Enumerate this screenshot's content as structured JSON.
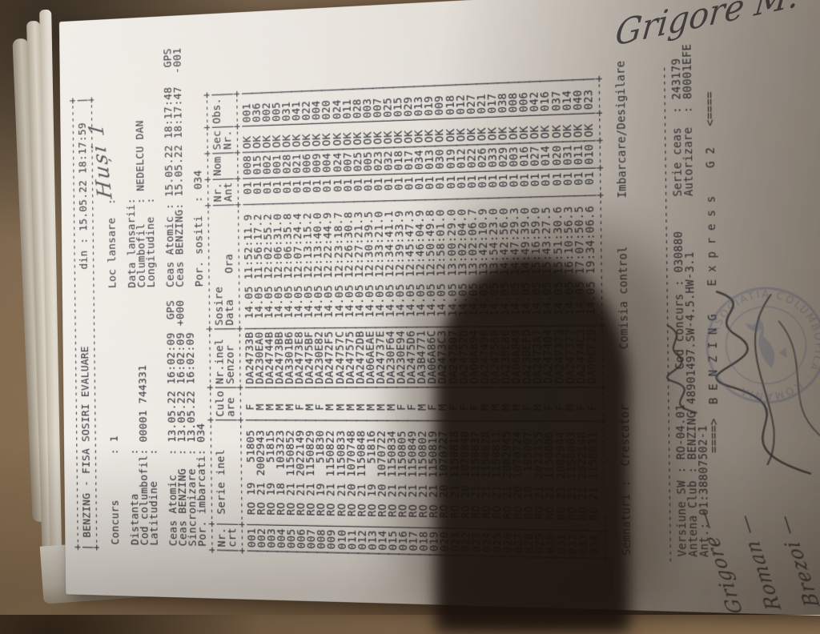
{
  "colors": {
    "paper": "#e9e5df",
    "ink": "#3c3e45",
    "stamp_blue": "#6b7aa8",
    "background_wood": "#7d6549",
    "shadow": "#17100b"
  },
  "document": {
    "top_border": "+---------------------------------------------------------------------+",
    "title": "| BENZING - FISA SOSIRI EVALUARE",
    "din": "din : 15.05.22 18:17:59",
    "info_lines": [
      {
        "left": "",
        "right": ""
      },
      {
        "left": "Concurs       : 1",
        "right": "Loc lansare  :"
      },
      {
        "left": "",
        "right": ""
      },
      {
        "left": "Distanta      :",
        "right": "Data lansarii:"
      },
      {
        "left": "Cod columbofil: 00001 744331",
        "right": "Columbofil   : NEDELCU DAN"
      },
      {
        "left": "Latitudine    :",
        "right": "Longitudine  :"
      },
      {
        "left": "",
        "right": ""
      },
      {
        "left": "Ceas Atomic   : 13.05.22 16:02:09  GPS",
        "right": "Ceas Atomic : 15.05.22 18:17:48   GPS"
      },
      {
        "left": "Ceas BENZING  : 13.05.22 16:02:09 +000",
        "right": "Ceas BENZING: 15.05.22 18:17:47  -001"
      },
      {
        "left": "Sincronizare  : 13.05.22 16:02:09",
        "right": ""
      },
      {
        "left": "Por. imbarcati: 034",
        "right": "Por. sositi  : 034"
      }
    ]
  },
  "table": {
    "border": "+---+---------------+----+--------+------------------+---+---+---+----+",
    "header_row1": "|Nr.| Serie inel    |Culo|Nr.inel |Sosire            |Nr.|Nom|Sec|Obs.|",
    "header_row2": "|crt|               |are |Senzor  |Data    Ora       |Ant|   |Nr.|    |",
    "rows": [
      [
        "001",
        "RO",
        "19",
        "51805",
        "F",
        "DA24733B",
        "14.05",
        "11:52:11.9",
        "01",
        "008",
        "OK",
        "001"
      ],
      [
        "002",
        "RO",
        "21",
        "2002943",
        "M",
        "DA230EA0",
        "14.05",
        "11:56:17.2",
        "01",
        "015",
        "OK",
        "036"
      ],
      [
        "003",
        "RO",
        "19",
        "51815",
        "M",
        "DA24744B",
        "14.05",
        "12:02:55.2",
        "01",
        "002",
        "OK",
        "002"
      ],
      [
        "004",
        "RO",
        "18",
        "103323",
        "M",
        "DA2473BB",
        "14.05",
        "12:06:31.0",
        "01",
        "001",
        "OK",
        "005"
      ],
      [
        "005",
        "RO",
        "21",
        "1150852",
        "M",
        "DA3301B6",
        "14.05",
        "12:06:35.8",
        "01",
        "028",
        "OK",
        "031"
      ],
      [
        "006",
        "RO",
        "21",
        "2022149",
        "F",
        "DA2473E8",
        "14.05",
        "12:07:24.4",
        "01",
        "021",
        "OK",
        "041"
      ],
      [
        "007",
        "RO",
        "21",
        "1150829",
        "M",
        "DA2475BF",
        "14.05",
        "12:13:15.2",
        "01",
        "006",
        "OK",
        "022"
      ],
      [
        "008",
        "RO",
        "19",
        "51830",
        "F",
        "DA230E82",
        "14.05",
        "12:13:40.0",
        "01",
        "009",
        "OK",
        "004"
      ],
      [
        "009",
        "RO",
        "21",
        "1150822",
        "M",
        "DA2472F5",
        "14.05",
        "12:22:44.9",
        "01",
        "004",
        "OK",
        "020"
      ],
      [
        "010",
        "RO",
        "21",
        "1150833",
        "M",
        "DA24757C",
        "14.05",
        "12:23:18.7",
        "01",
        "024",
        "OK",
        "024"
      ],
      [
        "011",
        "RO",
        "20",
        "1070748",
        "M",
        "DA247575",
        "14.05",
        "12:26:30.8",
        "01",
        "007",
        "OK",
        "011"
      ],
      [
        "012",
        "RO",
        "21",
        "1150848",
        "M",
        "DA2472DB",
        "14.05",
        "12:27:21.3",
        "01",
        "025",
        "OK",
        "028"
      ],
      [
        "013",
        "RO",
        "19",
        "51816",
        "M",
        "DA06AEAE",
        "14.05",
        "12:30:39.5",
        "01",
        "005",
        "OK",
        "003"
      ],
      [
        "014",
        "RO",
        "20",
        "1070722",
        "M",
        "DA24737E",
        "14.05",
        "12:33:21.0",
        "01",
        "023",
        "OK",
        "007"
      ],
      [
        "015",
        "RO",
        "21",
        "1150834",
        "M",
        "DA230F64",
        "14.05",
        "12:34:41.1",
        "01",
        "032",
        "OK",
        "025"
      ],
      [
        "016",
        "RO",
        "21",
        "1150805",
        "F",
        "DA230E94",
        "14.05",
        "12:39:33.9",
        "01",
        "018",
        "OK",
        "015"
      ],
      [
        "017",
        "RO",
        "21",
        "1150849",
        "F",
        "DA2475D6",
        "14.05",
        "12:45:47.3",
        "01",
        "017",
        "OK",
        "029"
      ],
      [
        "018",
        "RO",
        "21",
        "1150802",
        "M",
        "DA3B4771",
        "14.05",
        "12:46:04.9",
        "01",
        "034",
        "OK",
        "013"
      ],
      [
        "019",
        "RO",
        "21",
        "1150819",
        "F",
        "DA06A86C",
        "14.05",
        "12:50:49.8",
        "01",
        "013",
        "OK",
        "019"
      ],
      [
        "020",
        "RO",
        "20",
        "1070727",
        "M",
        "DA2473C3",
        "14.05",
        "12:58:01.0",
        "01",
        "030",
        "OK",
        "009"
      ],
      [
        "021",
        "RO",
        "21",
        "1150818",
        "F",
        "DA247507",
        "14.05",
        "13:00:29.0",
        "01",
        "019",
        "OK",
        "018"
      ],
      [
        "022",
        "RO",
        "20",
        "1070840",
        "F",
        "DA24752D",
        "14.05",
        "13:02:04.0",
        "01",
        "012",
        "OK",
        "012"
      ],
      [
        "023",
        "RO",
        "21",
        "1150837",
        "F",
        "DA06A894",
        "14.05",
        "13:02:06.7",
        "01",
        "022",
        "OK",
        "027"
      ],
      [
        "024",
        "RO",
        "21",
        "1150828",
        "M",
        "DA247496",
        "14.05",
        "13:42:10.9",
        "01",
        "026",
        "OK",
        "021"
      ],
      [
        "025",
        "RO",
        "21",
        "1150811",
        "M",
        "DA247568",
        "14.05",
        "13:54:23.0",
        "01",
        "033",
        "OK",
        "017"
      ],
      [
        "026",
        "RO",
        "21",
        "2002945",
        "M",
        "DA230E86",
        "14.05",
        "14:42:56.0",
        "01",
        "029",
        "OK",
        "038"
      ],
      [
        "027",
        "RO",
        "20",
        "1070724",
        "M",
        "DA06A849",
        "14.05",
        "14:47:29.3",
        "01",
        "003",
        "OK",
        "008"
      ],
      [
        "028",
        "RO",
        "18",
        "105007",
        "F",
        "DA230EFD",
        "14.05",
        "14:49:39.0",
        "01",
        "016",
        "OK",
        "006"
      ],
      [
        "029",
        "RO",
        "21",
        "2022155",
        "M",
        "DA2473A7",
        "14.05",
        "15:16:59.0",
        "01",
        "027",
        "OK",
        "042"
      ],
      [
        "030",
        "RO",
        "21",
        "1150806",
        "F",
        "DA247404",
        "14.05",
        "15:43:27.5",
        "01",
        "014",
        "OK",
        "016"
      ],
      [
        "031",
        "RO",
        "21",
        "2002944",
        "F",
        "DA247373",
        "14.05",
        "15:51:30.6",
        "01",
        "020",
        "OK",
        "037"
      ],
      [
        "032",
        "RO",
        "21",
        "1150803",
        "M",
        "DA247377",
        "14.05",
        "16:10:56.3",
        "01",
        "031",
        "OK",
        "014"
      ],
      [
        "033",
        "RO",
        "21",
        "2022148",
        "F",
        "DA2474C3",
        "14.05",
        "17:07:50.5",
        "01",
        "011",
        "OK",
        "040"
      ],
      [
        "034",
        "RO",
        "21",
        "1150831",
        "F",
        "DA00EF29",
        "14.05",
        "19:34:06.6",
        "01",
        "010",
        "OK",
        "023"
      ]
    ]
  },
  "footer": {
    "signatures_line": "Semnaturi :  Crescator        Comisia control       Imbarcare/Desigilare",
    "separator": "------------------------------------------------------------------------",
    "versiune_line": "Versiune SW : RO-04.01     Cod concurs : 030880     Serie ceas  : 243179",
    "antena_line": "Antena Club : BENZING 48901497.SW-4.5.HW-3.1        Autorizare  : 80001EFE",
    "ant_line": "Ant.: 01:38807502-1",
    "banner": "====>  B E N Z I N G    E x p r e s s    G 2   <===="
  },
  "handwriting": {
    "loc_lansare": "Huși 1",
    "imbarcare_signature": "Grigore M.",
    "control_names": [
      "Grigore —",
      "Roman —",
      "Brezoi —"
    ]
  },
  "stamp": {
    "text": "ASOCIATIA COLUMBOFILA · ROMANIA · "
  }
}
